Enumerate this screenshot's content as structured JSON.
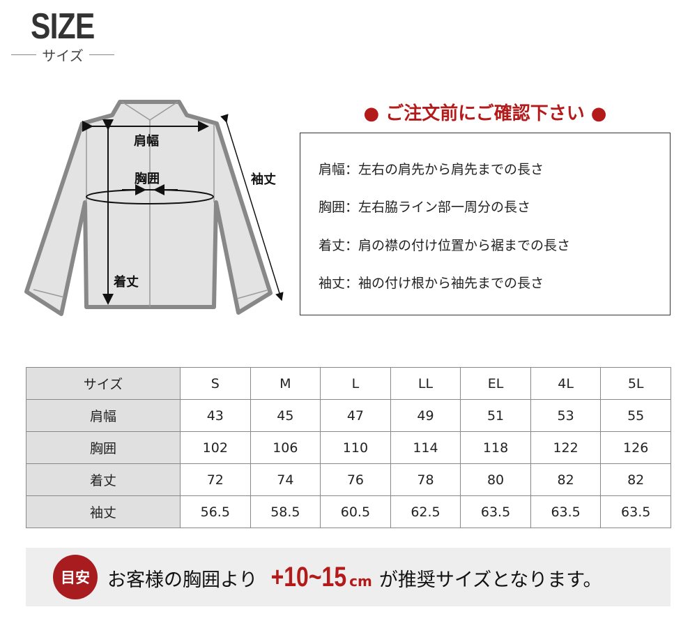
{
  "header": {
    "title": "SIZE",
    "subtitle": "サイズ"
  },
  "diagram": {
    "labels": {
      "shoulder": "肩幅",
      "chest": "胸囲",
      "length": "着丈",
      "sleeve": "袖丈"
    }
  },
  "notice": {
    "heading": "● ご注文前にご確認下さい ●",
    "color": "#b31b1b",
    "items": [
      "肩幅：左右の肩先から肩先までの長さ",
      "胸囲：左右脇ライン部一周分の長さ",
      "着丈：肩の襟の付け位置から裾までの長さ",
      "袖丈：袖の付け根から袖先までの長さ"
    ]
  },
  "table": {
    "headers": [
      "サイズ",
      "S",
      "M",
      "L",
      "LL",
      "EL",
      "4L",
      "5L"
    ],
    "rows": [
      {
        "label": "肩幅",
        "values": [
          "43",
          "45",
          "47",
          "49",
          "51",
          "53",
          "55"
        ]
      },
      {
        "label": "胸囲",
        "values": [
          "102",
          "106",
          "110",
          "114",
          "118",
          "122",
          "126"
        ]
      },
      {
        "label": "着丈",
        "values": [
          "72",
          "74",
          "76",
          "78",
          "80",
          "82",
          "82"
        ]
      },
      {
        "label": "袖丈",
        "values": [
          "56.5",
          "58.5",
          "60.5",
          "62.5",
          "63.5",
          "63.5",
          "63.5"
        ]
      }
    ]
  },
  "banner": {
    "badge": "目安",
    "before": "お客様の胸囲より",
    "range": "+10~15",
    "unit": "cm",
    "after": "が推奨サイズとなります。",
    "accent": "#a81c1f"
  }
}
